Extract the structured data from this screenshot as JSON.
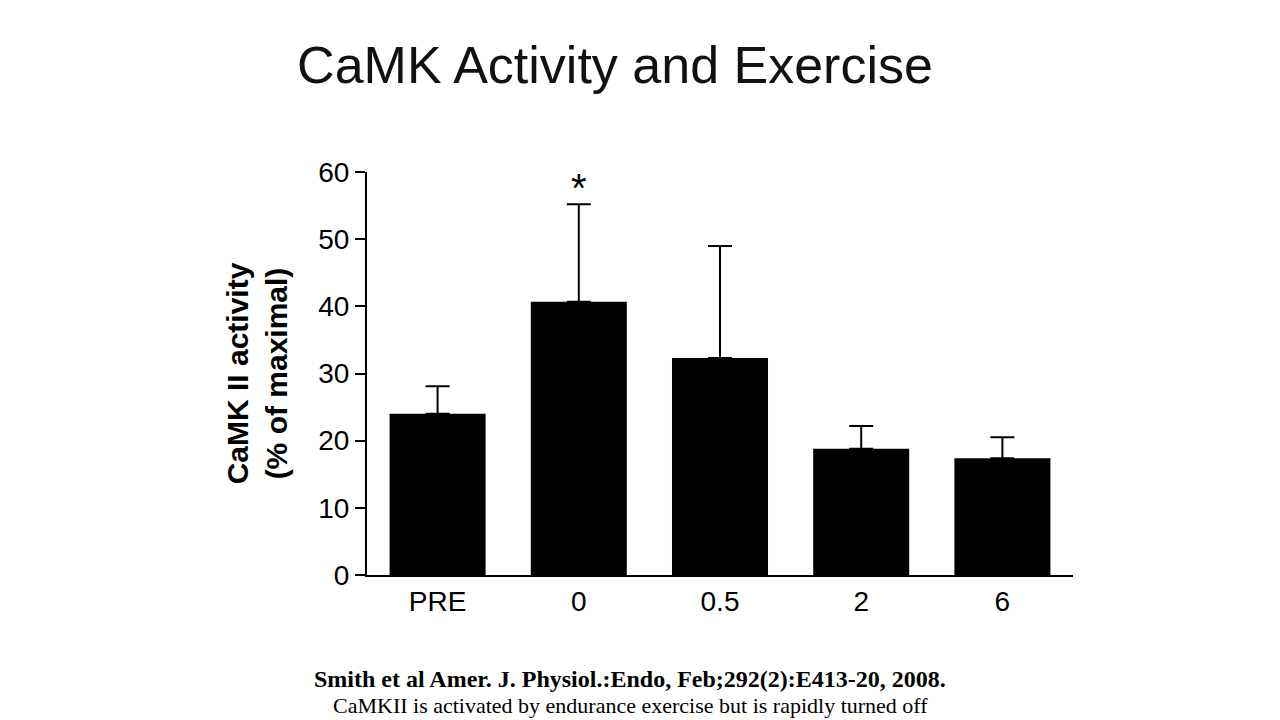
{
  "chart_data": {
    "type": "bar",
    "title": "CaMK Activity and Exercise",
    "y_label": "CaMK II activity (% of maximal)",
    "categories": [
      "PRE",
      "0",
      "0.5",
      "2",
      "6"
    ],
    "values": [
      24,
      40.7,
      32.3,
      18.8,
      17.4
    ],
    "error_plus": [
      4.1,
      14.5,
      16.7,
      3.4,
      3.1
    ],
    "color": "#000000",
    "ylim": [
      0,
      60
    ],
    "yticks": [
      0,
      10,
      20,
      30,
      40,
      50,
      60
    ],
    "grid": false,
    "annotations": [
      {
        "text": "*",
        "category": "0"
      }
    ],
    "source": "Smith et al Amer. J. Physiol.:Endo, Feb;292(2):E413-20, 2008.",
    "caption": "CaMKII is activated by endurance exercise but is rapidly turned off"
  }
}
